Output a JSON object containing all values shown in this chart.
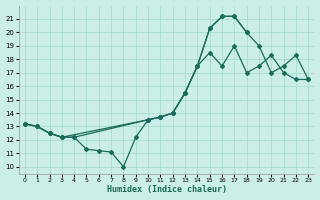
{
  "xlabel": "Humidex (Indice chaleur)",
  "bg_color": "#cceee8",
  "grid_color": "#aaddcc",
  "line_color": "#1a6b5a",
  "xlim": [
    -0.5,
    23.5
  ],
  "ylim": [
    9.5,
    22.0
  ],
  "xticks": [
    0,
    1,
    2,
    3,
    4,
    5,
    6,
    7,
    8,
    9,
    10,
    11,
    12,
    13,
    14,
    15,
    16,
    17,
    18,
    19,
    20,
    21,
    22,
    23
  ],
  "yticks": [
    10,
    11,
    12,
    13,
    14,
    15,
    16,
    17,
    18,
    19,
    20,
    21
  ],
  "line1_x": [
    0,
    1,
    2,
    3,
    4,
    5,
    6,
    7,
    8,
    9,
    10,
    11,
    12,
    13,
    14,
    15,
    16,
    17,
    18,
    19,
    20,
    21,
    22,
    23
  ],
  "line1_y": [
    13.2,
    13.0,
    12.5,
    12.2,
    12.2,
    11.3,
    11.2,
    11.1,
    10.0,
    12.2,
    13.5,
    13.7,
    14.0,
    15.5,
    17.5,
    18.5,
    17.5,
    19.0,
    17.0,
    17.5,
    18.3,
    17.0,
    16.5,
    16.5
  ],
  "line2_x": [
    0,
    1,
    2,
    3,
    4,
    10,
    11,
    12,
    13,
    14,
    15,
    16,
    17,
    18
  ],
  "line2_y": [
    13.2,
    13.0,
    12.5,
    12.2,
    12.2,
    13.5,
    13.7,
    14.0,
    15.5,
    17.5,
    20.3,
    21.2,
    21.2,
    20.0
  ],
  "line3_x": [
    0,
    1,
    2,
    3,
    10,
    11,
    12,
    13,
    14,
    15,
    16,
    17,
    18,
    19,
    20,
    21,
    22,
    23
  ],
  "line3_y": [
    13.2,
    13.0,
    12.5,
    12.2,
    13.5,
    13.7,
    14.0,
    15.5,
    17.5,
    20.3,
    21.2,
    21.2,
    20.0,
    19.0,
    17.0,
    17.5,
    18.3,
    16.5
  ]
}
